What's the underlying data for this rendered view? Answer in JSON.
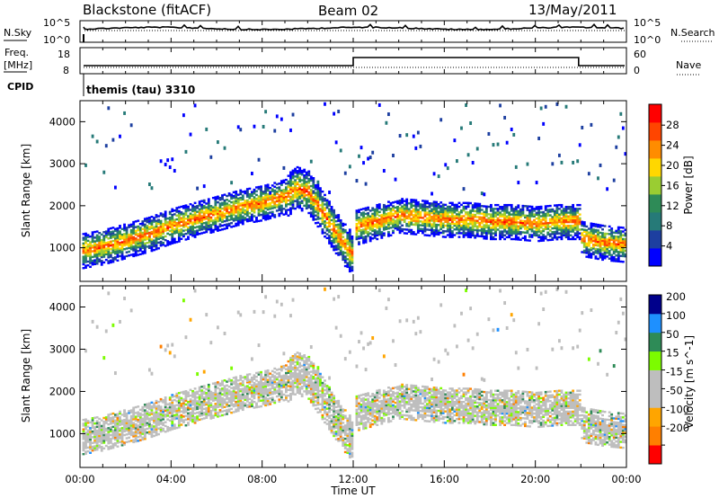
{
  "header": {
    "station": "Blackstone (fitACF)",
    "beam": "Beam 02",
    "date": "13/May/2011"
  },
  "params": {
    "nsky_label": "N.Sky",
    "nsearch_label": "N.Search",
    "freq_label_1": "Freq.",
    "freq_label_2": "[MHz]",
    "nave_label": "Nave",
    "cpid_label": "CPID",
    "noise_ticks": [
      "10^5",
      "10^0"
    ],
    "freq_ticks": [
      "18",
      "8"
    ],
    "nave_ticks": [
      "60",
      "0"
    ],
    "cpid_text": "themis (tau) 3310"
  },
  "colors": {
    "power": [
      "#0000ff",
      "#1d3fa0",
      "#267a78",
      "#2e8b57",
      "#9acd32",
      "#ffd700",
      "#ff8c00",
      "#ff4500",
      "#ff0000"
    ],
    "velocity": [
      "#ff0000",
      "#ff7f00",
      "#ffa500",
      "#bebebe",
      "#bebebe",
      "#7cfc00",
      "#2e8b57",
      "#1e90ff",
      "#00008b"
    ]
  },
  "chart_data": [
    {
      "type": "heatmap",
      "name": "power",
      "ylabel": "Slant Range [km]",
      "xlabel": "Time UT",
      "xticks": [
        "00:00",
        "04:00",
        "08:00",
        "12:00",
        "16:00",
        "20:00",
        "00:00"
      ],
      "xlim_hours": [
        0,
        24
      ],
      "ylim": [
        200,
        4500
      ],
      "yticks": [
        1000,
        2000,
        3000,
        4000
      ],
      "colorbar": {
        "label": "Power [dB]",
        "ticks": [
          4,
          8,
          12,
          16,
          20,
          24,
          28
        ],
        "range": [
          0,
          30
        ]
      },
      "main_echo_band": {
        "hours": [
          0,
          1,
          2,
          3,
          4,
          5,
          6,
          7,
          8,
          9,
          9.5,
          10,
          10.5,
          11,
          11.5,
          11.9,
          12,
          13,
          14,
          15,
          16,
          17,
          18,
          19,
          20,
          21,
          21.9,
          22,
          23,
          24
        ],
        "range_km": [
          900,
          1000,
          1150,
          1300,
          1500,
          1650,
          1800,
          1950,
          2050,
          2200,
          2400,
          2300,
          1900,
          1500,
          1100,
          850,
          1450,
          1600,
          1750,
          1700,
          1650,
          1650,
          1600,
          1600,
          1550,
          1600,
          1600,
          1200,
          1100,
          1050
        ]
      }
    },
    {
      "type": "heatmap",
      "name": "velocity",
      "ylabel": "Slant Range [km]",
      "xlabel": "Time UT",
      "xticks": [
        "00:00",
        "04:00",
        "08:00",
        "12:00",
        "16:00",
        "20:00",
        "00:00"
      ],
      "xlim_hours": [
        0,
        24
      ],
      "ylim": [
        200,
        4500
      ],
      "yticks": [
        1000,
        2000,
        3000,
        4000
      ],
      "colorbar": {
        "label": "Velocity [m s^-1]",
        "ticks": [
          200,
          100,
          50,
          15,
          -15,
          -50,
          -100,
          -200
        ],
        "range": [
          -250,
          250
        ]
      }
    }
  ]
}
